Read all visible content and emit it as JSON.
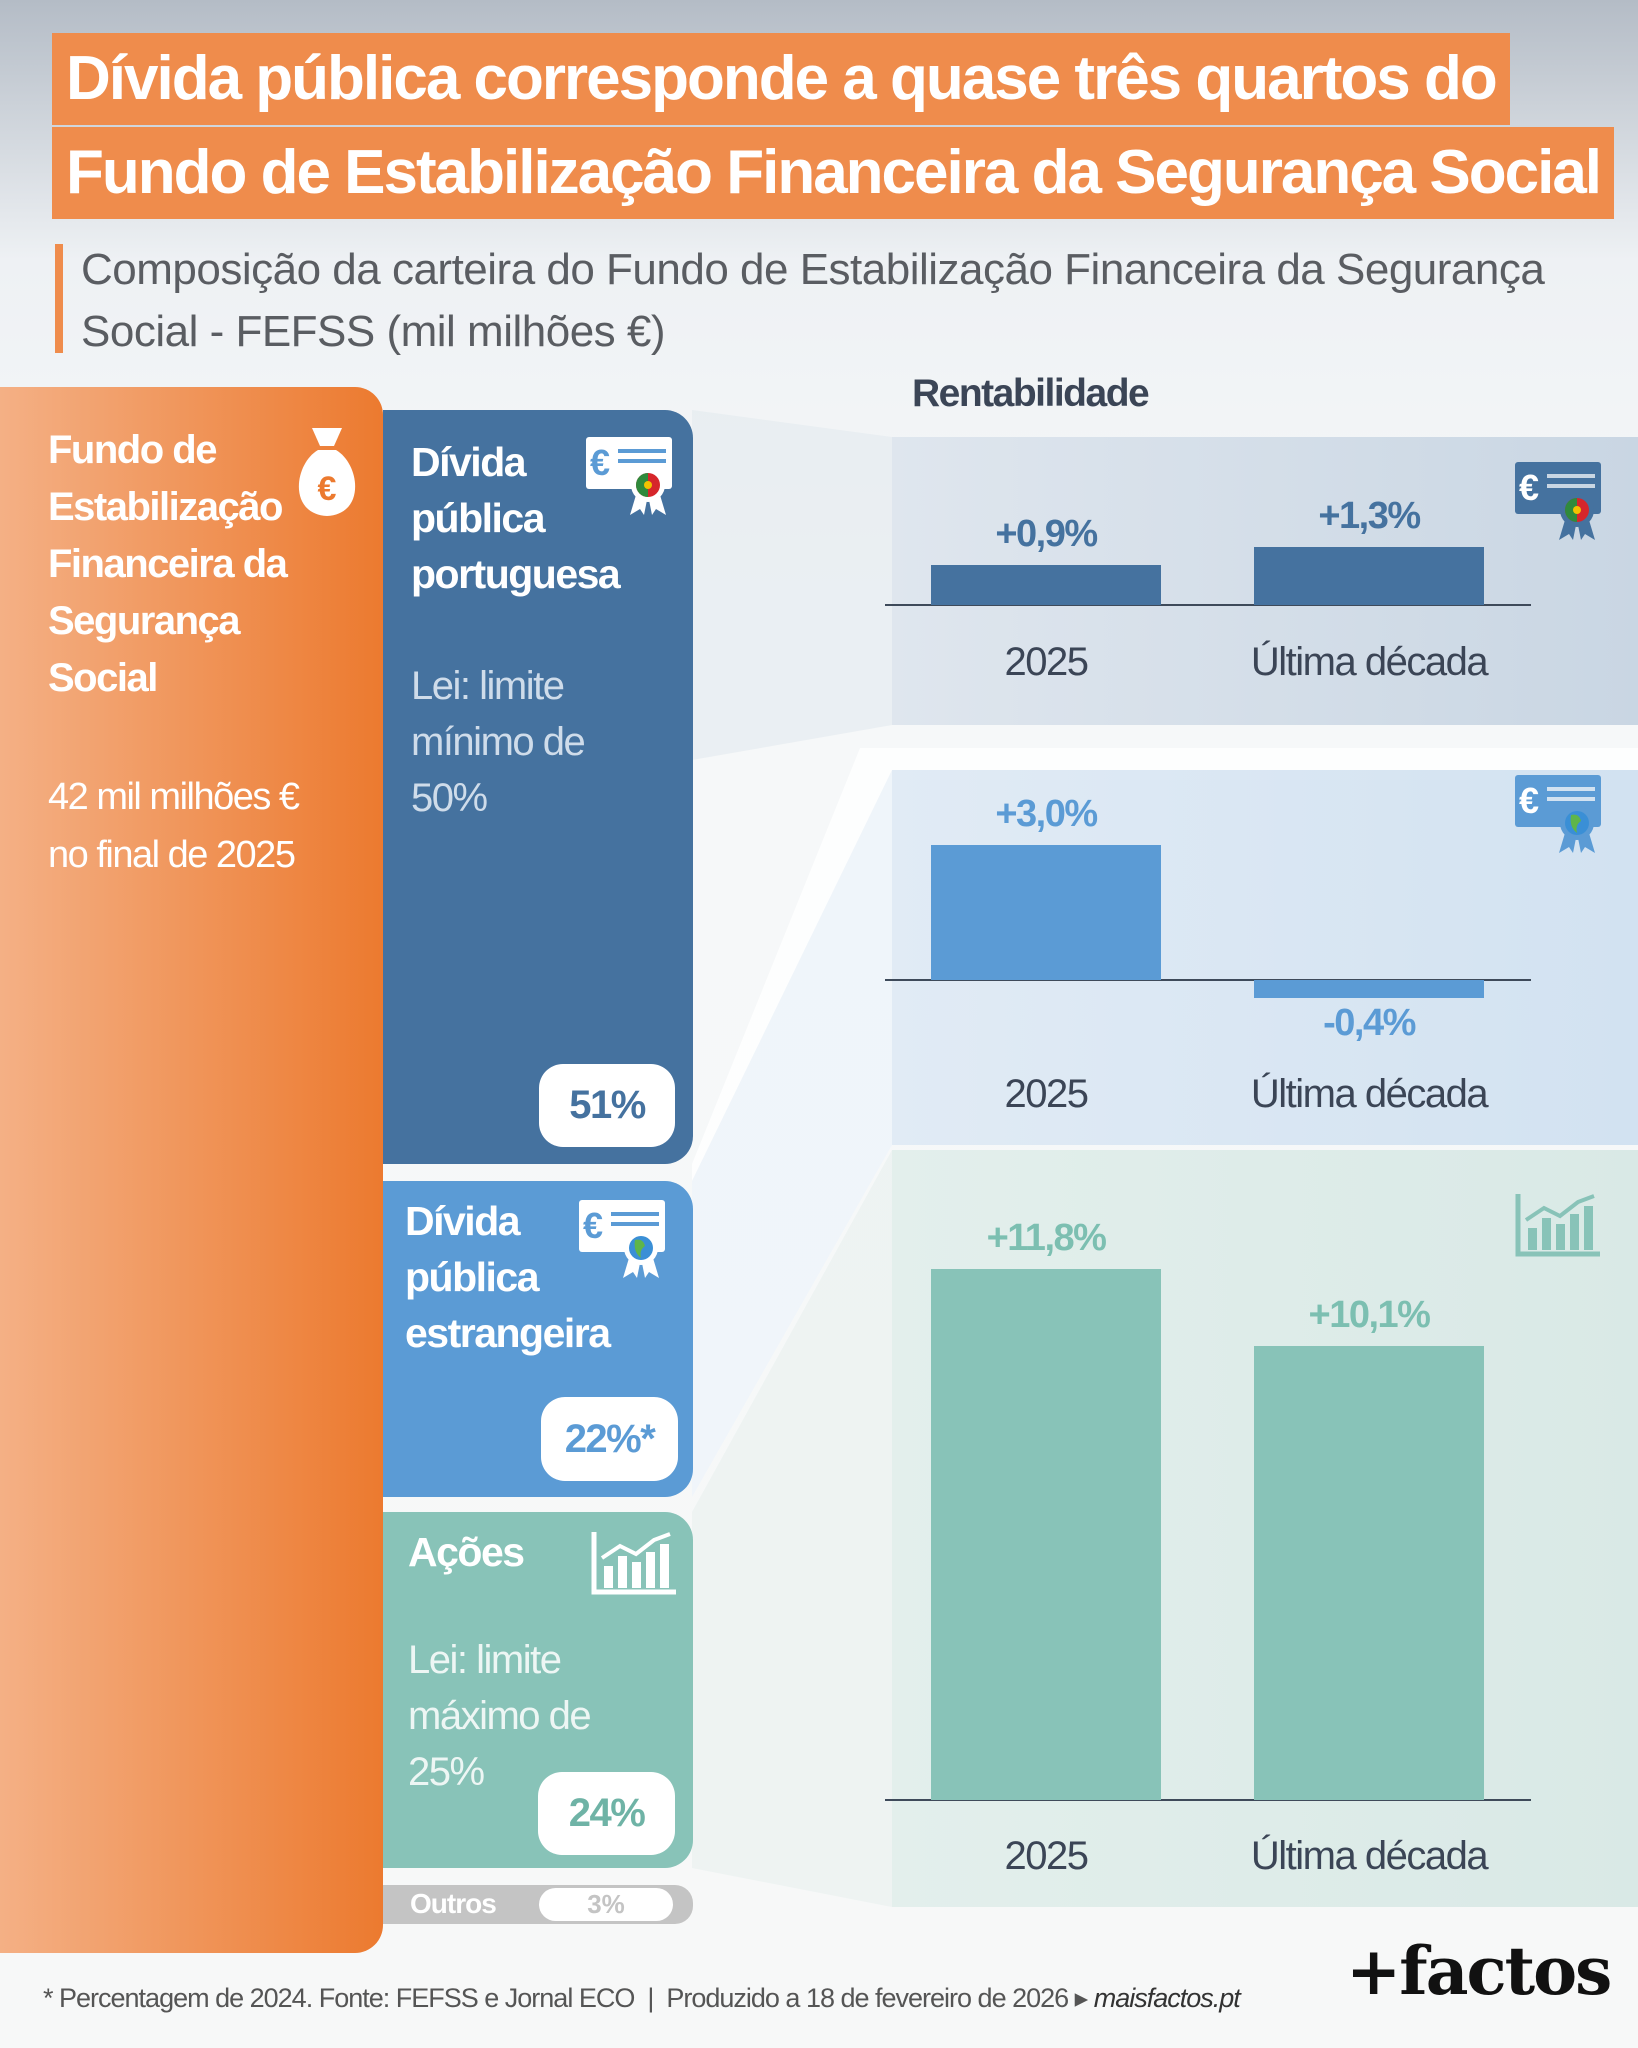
{
  "header": {
    "title_line1": "Dívida pública corresponde a quase três quartos do",
    "title_line2": "Fundo de Estabilização Financeira da Segurança Social",
    "subtitle_line1": "Composição da carteira do Fundo de Estabilização Financeira da Segurança",
    "subtitle_line2": "Social - FEFSS (mil milhões €)"
  },
  "fund": {
    "name": "Fundo de Estabilização Financeira da Segurança Social",
    "amount_line1": "42 mil milhões €",
    "amount_line2": "no final de 2025",
    "icon": "money-bag-icon"
  },
  "composition": [
    {
      "title": "Dívida pública portuguesa",
      "law": "Lei: limite mínimo de 50%",
      "share": "51%",
      "share_value": 51,
      "color": "#45729f",
      "icon": "certificate-portugal-icon"
    },
    {
      "title": "Dívida pública estrangeira",
      "law": "",
      "share": "22%*",
      "share_value": 22,
      "color": "#5b9bd5",
      "icon": "certificate-globe-icon"
    },
    {
      "title": "Ações",
      "law": "Lei: limite máximo de 25%",
      "share": "24%",
      "share_value": 24,
      "color": "#88c3b8",
      "icon": "stock-chart-icon"
    },
    {
      "title": "Outros",
      "share": "3%",
      "share_value": 3,
      "color": "#c4c4c4"
    }
  ],
  "chart_data": [
    {
      "type": "bar",
      "title": "Rentabilidade",
      "categories": [
        "2025",
        "Última década"
      ],
      "values": [
        0.9,
        1.3
      ],
      "labels": [
        "+0,9%",
        "+1,3%"
      ],
      "color": "#45729f"
    },
    {
      "type": "bar",
      "categories": [
        "2025",
        "Última década"
      ],
      "values": [
        3.0,
        -0.4
      ],
      "labels": [
        "+3,0%",
        "-0,4%"
      ],
      "color": "#5b9bd5"
    },
    {
      "type": "bar",
      "categories": [
        "2025",
        "Última década"
      ],
      "values": [
        11.8,
        10.1
      ],
      "labels": [
        "+11,8%",
        "+10,1%"
      ],
      "color": "#88c3b8",
      "label_color": "#7cbfb1"
    }
  ],
  "footer": {
    "note": "* Percentagem de 2024. Fonte: FEFSS e Jornal ECO  |  Produzido a 18 de fevereiro de 2026 ▸ ",
    "link": "maisfactos.pt",
    "logo": "+factos"
  }
}
